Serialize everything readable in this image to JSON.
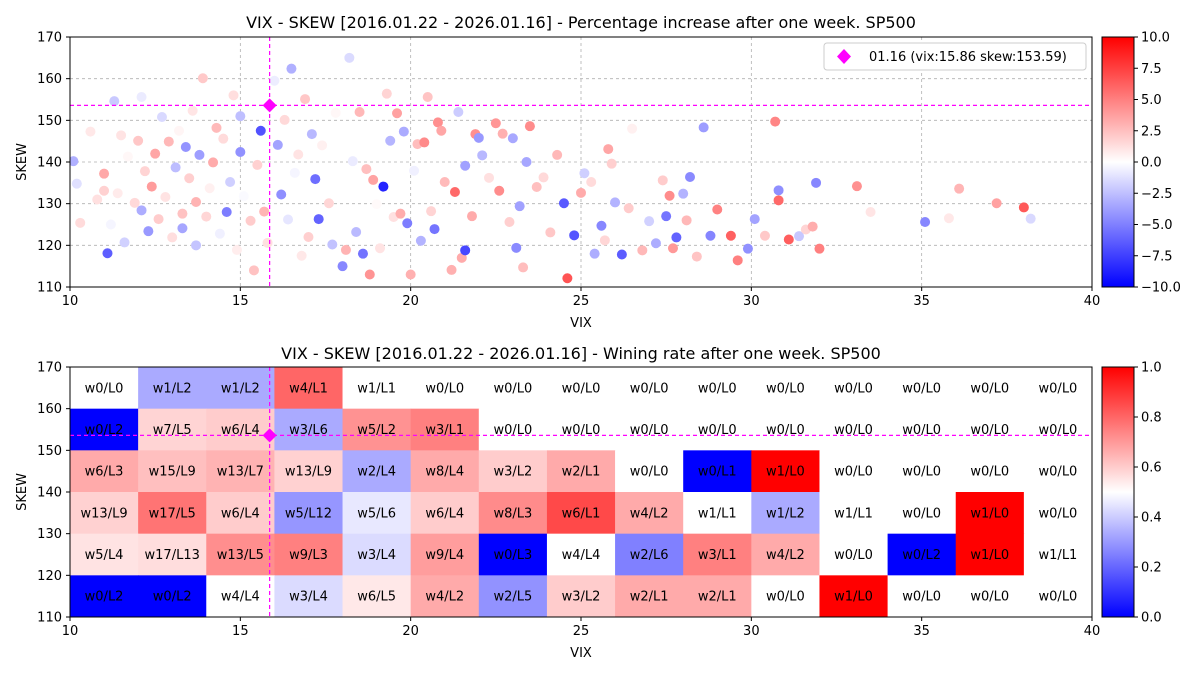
{
  "chart_data": [
    {
      "type": "scatter",
      "title": "VIX - SKEW [2016.01.22 - 2026.01.16]  - Percentage increase after one week. SP500",
      "xlabel": "VIX",
      "ylabel": "SKEW",
      "xlim": [
        10,
        40
      ],
      "ylim": [
        110,
        170
      ],
      "xticks": [
        10,
        15,
        20,
        25,
        30,
        35,
        40
      ],
      "yticks": [
        110,
        120,
        130,
        140,
        150,
        160,
        170
      ],
      "grid": true,
      "colormap": "bwr",
      "color_range": [
        -10,
        10
      ],
      "colorbar_ticks": [
        "10.0",
        "7.5",
        "5.0",
        "2.5",
        "0.0",
        "−2.5",
        "−5.0",
        "−7.5",
        "−10.0"
      ],
      "legend": {
        "label": "01.16 (vix:15.86 skew:153.59)",
        "location": "upper right",
        "marker_color": "#ff00ff"
      },
      "current": {
        "vix": 15.86,
        "skew": 153.59
      },
      "points": [
        [
          10.1,
          140.2,
          -3.1
        ],
        [
          10.2,
          134.8,
          -1.2
        ],
        [
          10.3,
          125.4,
          1.4
        ],
        [
          10.6,
          147.3,
          0.9
        ],
        [
          10.8,
          131.0,
          1.2
        ],
        [
          11.0,
          137.2,
          3.4
        ],
        [
          11.0,
          133.1,
          1.8
        ],
        [
          11.1,
          118.1,
          -6.3
        ],
        [
          11.2,
          125.0,
          -0.4
        ],
        [
          11.3,
          154.6,
          -2.1
        ],
        [
          11.4,
          132.5,
          0.8
        ],
        [
          11.5,
          146.4,
          1.1
        ],
        [
          11.6,
          120.7,
          -1.8
        ],
        [
          11.7,
          141.3,
          0.3
        ],
        [
          11.9,
          130.2,
          1.5
        ],
        [
          12.0,
          145.1,
          2.2
        ],
        [
          12.1,
          128.4,
          -3.2
        ],
        [
          12.1,
          155.6,
          -0.8
        ],
        [
          12.2,
          137.8,
          1.7
        ],
        [
          12.3,
          123.4,
          -4.0
        ],
        [
          12.4,
          134.1,
          3.9
        ],
        [
          12.5,
          142.0,
          3.5
        ],
        [
          12.6,
          126.3,
          2.0
        ],
        [
          12.7,
          150.8,
          -1.5
        ],
        [
          12.8,
          131.6,
          1.1
        ],
        [
          12.9,
          144.9,
          2.8
        ],
        [
          13.0,
          121.9,
          1.3
        ],
        [
          13.1,
          138.7,
          -2.6
        ],
        [
          13.2,
          147.5,
          0.4
        ],
        [
          13.3,
          127.6,
          2.4
        ],
        [
          13.3,
          124.1,
          -3.5
        ],
        [
          13.4,
          143.6,
          -4.2
        ],
        [
          13.5,
          136.1,
          1.9
        ],
        [
          13.6,
          152.3,
          1.0
        ],
        [
          13.7,
          120.0,
          -2.3
        ],
        [
          13.7,
          130.4,
          3.0
        ],
        [
          13.8,
          141.7,
          -3.8
        ],
        [
          13.9,
          160.1,
          2.1
        ],
        [
          14.0,
          126.9,
          1.6
        ],
        [
          14.1,
          133.7,
          0.6
        ],
        [
          14.2,
          139.9,
          3.3
        ],
        [
          14.3,
          148.2,
          2.7
        ],
        [
          14.4,
          122.8,
          -0.6
        ],
        [
          14.5,
          145.6,
          1.4
        ],
        [
          14.6,
          128.0,
          -5.1
        ],
        [
          14.7,
          135.2,
          -1.9
        ],
        [
          14.8,
          156.0,
          1.3
        ],
        [
          14.9,
          118.9,
          0.7
        ],
        [
          15.0,
          142.4,
          -4.3
        ],
        [
          15.0,
          151.0,
          -2.5
        ],
        [
          15.1,
          131.8,
          -0.2
        ],
        [
          15.3,
          125.9,
          2.0
        ],
        [
          15.4,
          114.0,
          2.4
        ],
        [
          15.5,
          139.3,
          1.8
        ],
        [
          15.6,
          147.5,
          -6.8
        ],
        [
          15.7,
          128.1,
          2.9
        ],
        [
          15.8,
          120.6,
          1.2
        ],
        [
          16.0,
          159.5,
          -0.7
        ],
        [
          16.1,
          144.1,
          -3.6
        ],
        [
          16.2,
          132.2,
          -4.4
        ],
        [
          16.3,
          150.1,
          1.5
        ],
        [
          16.4,
          126.2,
          -1.0
        ],
        [
          16.5,
          162.4,
          -3.1
        ],
        [
          16.6,
          137.4,
          -0.4
        ],
        [
          16.7,
          141.8,
          1.1
        ],
        [
          16.8,
          117.5,
          0.9
        ],
        [
          16.9,
          155.1,
          2.2
        ],
        [
          17.0,
          122.0,
          1.9
        ],
        [
          17.1,
          146.7,
          -2.8
        ],
        [
          17.2,
          135.9,
          -5.7
        ],
        [
          17.3,
          126.3,
          -6.1
        ],
        [
          17.4,
          144.0,
          0.6
        ],
        [
          17.6,
          130.1,
          1.6
        ],
        [
          17.7,
          120.2,
          -2.4
        ],
        [
          17.8,
          151.8,
          0.3
        ],
        [
          18.0,
          115.0,
          -4.7
        ],
        [
          18.1,
          118.9,
          3.0
        ],
        [
          18.2,
          165.0,
          -1.4
        ],
        [
          18.3,
          140.2,
          -0.8
        ],
        [
          18.4,
          123.2,
          -2.7
        ],
        [
          18.5,
          152.0,
          2.8
        ],
        [
          18.6,
          118.0,
          -5.5
        ],
        [
          18.7,
          138.3,
          2.5
        ],
        [
          18.8,
          113.0,
          4.2
        ],
        [
          18.9,
          135.7,
          3.6
        ],
        [
          19.0,
          129.9,
          0.2
        ],
        [
          19.1,
          119.3,
          1.1
        ],
        [
          19.2,
          134.1,
          -8.6
        ],
        [
          19.3,
          156.4,
          1.7
        ],
        [
          19.4,
          145.1,
          -2.9
        ],
        [
          19.5,
          126.8,
          1.2
        ],
        [
          19.6,
          151.7,
          3.7
        ],
        [
          19.7,
          127.6,
          3.2
        ],
        [
          19.8,
          147.3,
          -3.3
        ],
        [
          19.9,
          125.3,
          -5.1
        ],
        [
          20.0,
          113.0,
          3.1
        ],
        [
          20.1,
          137.9,
          -0.6
        ],
        [
          20.2,
          144.3,
          2.6
        ],
        [
          20.3,
          121.1,
          -3.0
        ],
        [
          20.4,
          144.7,
          4.6
        ],
        [
          20.5,
          155.6,
          2.3
        ],
        [
          20.6,
          128.2,
          1.7
        ],
        [
          20.7,
          123.9,
          -5.4
        ],
        [
          20.8,
          149.5,
          4.4
        ],
        [
          20.9,
          147.5,
          3.5
        ],
        [
          21.0,
          135.2,
          2.7
        ],
        [
          21.2,
          114.1,
          3.1
        ],
        [
          21.3,
          132.8,
          5.9
        ],
        [
          21.4,
          152.0,
          -2.0
        ],
        [
          21.5,
          117.0,
          3.3
        ],
        [
          21.6,
          139.1,
          -3.7
        ],
        [
          21.6,
          118.8,
          -7.2
        ],
        [
          21.8,
          127.0,
          3.3
        ],
        [
          21.9,
          146.7,
          4.4
        ],
        [
          22.0,
          145.8,
          -4.0
        ],
        [
          22.1,
          141.6,
          -2.8
        ],
        [
          22.3,
          136.2,
          1.2
        ],
        [
          22.5,
          149.3,
          4.1
        ],
        [
          22.6,
          133.1,
          4.5
        ],
        [
          22.7,
          146.8,
          3.1
        ],
        [
          22.9,
          125.6,
          1.9
        ],
        [
          23.0,
          145.7,
          -3.4
        ],
        [
          23.1,
          119.4,
          -4.6
        ],
        [
          23.2,
          129.4,
          -3.7
        ],
        [
          23.3,
          114.7,
          2.6
        ],
        [
          23.4,
          140.0,
          -3.5
        ],
        [
          23.5,
          148.6,
          4.5
        ],
        [
          23.7,
          134.0,
          2.5
        ],
        [
          23.9,
          136.3,
          1.5
        ],
        [
          24.1,
          123.1,
          2.2
        ],
        [
          24.3,
          141.7,
          2.8
        ],
        [
          24.5,
          130.1,
          -6.5
        ],
        [
          24.6,
          112.1,
          6.7
        ],
        [
          24.8,
          122.4,
          -6.7
        ],
        [
          25.0,
          132.6,
          3.3
        ],
        [
          25.1,
          137.3,
          -1.9
        ],
        [
          25.3,
          135.2,
          1.4
        ],
        [
          25.4,
          118.0,
          -3.2
        ],
        [
          25.6,
          124.7,
          -4.7
        ],
        [
          25.7,
          121.2,
          1.6
        ],
        [
          25.8,
          143.1,
          3.5
        ],
        [
          25.9,
          139.6,
          1.9
        ],
        [
          26.0,
          130.3,
          -3.0
        ],
        [
          26.2,
          117.8,
          -6.4
        ],
        [
          26.4,
          128.9,
          2.0
        ],
        [
          26.5,
          148.0,
          0.6
        ],
        [
          26.8,
          118.8,
          2.8
        ],
        [
          27.0,
          125.8,
          -1.8
        ],
        [
          27.2,
          120.5,
          -3.2
        ],
        [
          27.4,
          135.6,
          2.0
        ],
        [
          27.5,
          127.0,
          -5.4
        ],
        [
          27.6,
          131.9,
          4.5
        ],
        [
          27.7,
          119.3,
          4.0
        ],
        [
          27.8,
          121.9,
          -6.1
        ],
        [
          28.0,
          132.4,
          -3.0
        ],
        [
          28.1,
          126.0,
          2.8
        ],
        [
          28.2,
          136.4,
          -4.6
        ],
        [
          28.4,
          117.3,
          2.3
        ],
        [
          28.6,
          148.3,
          -3.9
        ],
        [
          28.8,
          122.3,
          -4.8
        ],
        [
          29.0,
          128.6,
          4.9
        ],
        [
          29.4,
          122.3,
          6.2
        ],
        [
          29.6,
          116.4,
          5.0
        ],
        [
          29.9,
          119.2,
          -4.3
        ],
        [
          30.1,
          126.3,
          -3.6
        ],
        [
          30.4,
          122.3,
          2.1
        ],
        [
          30.7,
          149.7,
          4.8
        ],
        [
          30.8,
          133.2,
          -4.4
        ],
        [
          30.8,
          130.8,
          5.9
        ],
        [
          31.1,
          121.4,
          6.3
        ],
        [
          31.4,
          122.2,
          -2.2
        ],
        [
          31.6,
          123.8,
          1.7
        ],
        [
          31.8,
          124.5,
          3.2
        ],
        [
          31.9,
          135.0,
          -4.7
        ],
        [
          32.0,
          119.2,
          5.0
        ],
        [
          33.1,
          134.2,
          4.3
        ],
        [
          33.5,
          128.0,
          1.0
        ],
        [
          35.1,
          125.6,
          -4.7
        ],
        [
          35.8,
          126.5,
          0.9
        ],
        [
          36.1,
          133.6,
          2.9
        ],
        [
          37.2,
          130.1,
          3.7
        ],
        [
          38.0,
          129.1,
          6.5
        ],
        [
          38.2,
          126.4,
          -1.5
        ]
      ]
    },
    {
      "type": "heatmap",
      "title": "VIX - SKEW [2016.01.22 - 2026.01.16]  - Wining rate after one week. SP500",
      "xlabel": "VIX",
      "ylabel": "SKEW",
      "xlim": [
        10,
        40
      ],
      "ylim": [
        110,
        170
      ],
      "xticks": [
        10,
        15,
        20,
        25,
        30,
        35,
        40
      ],
      "yticks": [
        110,
        120,
        130,
        140,
        150,
        160,
        170
      ],
      "colormap": "bwr",
      "color_range": [
        0,
        1
      ],
      "colorbar_ticks": [
        "1.0",
        "0.8",
        "0.6",
        "0.4",
        "0.2",
        "0.0"
      ],
      "x_bin_edges": [
        10,
        12,
        14,
        16,
        18,
        20,
        22,
        24,
        26,
        28,
        30,
        32,
        34,
        36,
        38,
        40
      ],
      "y_bin_edges": [
        170,
        160,
        150,
        140,
        130,
        120,
        110
      ],
      "current": {
        "vix": 15.86,
        "skew": 153.59
      },
      "cells": [
        [
          "w0/L0",
          "w1/L2",
          "w1/L2",
          "w4/L1",
          "w1/L1",
          "w0/L0",
          "w0/L0",
          "w0/L0",
          "w0/L0",
          "w0/L0",
          "w0/L0",
          "w0/L0",
          "w0/L0",
          "w0/L0",
          "w0/L0"
        ],
        [
          "w0/L2",
          "w7/L5",
          "w6/L4",
          "w3/L6",
          "w5/L2",
          "w3/L1",
          "w0/L0",
          "w0/L0",
          "w0/L0",
          "w0/L0",
          "w0/L0",
          "w0/L0",
          "w0/L0",
          "w0/L0",
          "w0/L0"
        ],
        [
          "w6/L3",
          "w15/L9",
          "w13/L7",
          "w13/L9",
          "w2/L4",
          "w8/L4",
          "w3/L2",
          "w2/L1",
          "w0/L0",
          "w0/L1",
          "w1/L0",
          "w0/L0",
          "w0/L0",
          "w0/L0",
          "w0/L0"
        ],
        [
          "w13/L9",
          "w17/L5",
          "w6/L4",
          "w5/L12",
          "w5/L6",
          "w6/L4",
          "w8/L3",
          "w6/L1",
          "w4/L2",
          "w1/L1",
          "w1/L2",
          "w1/L1",
          "w0/L0",
          "w1/L0",
          "w0/L0"
        ],
        [
          "w5/L4",
          "w17/L13",
          "w13/L5",
          "w9/L3",
          "w3/L4",
          "w9/L4",
          "w0/L3",
          "w4/L4",
          "w2/L6",
          "w3/L1",
          "w4/L2",
          "w0/L0",
          "w0/L2",
          "w1/L0",
          "w1/L1"
        ],
        [
          "w0/L2",
          "w0/L2",
          "w4/L4",
          "w3/L4",
          "w6/L5",
          "w4/L2",
          "w2/L5",
          "w3/L2",
          "w2/L1",
          "w2/L1",
          "w0/L0",
          "w1/L0",
          "w0/L0",
          "w0/L0",
          "w0/L0"
        ]
      ]
    }
  ]
}
